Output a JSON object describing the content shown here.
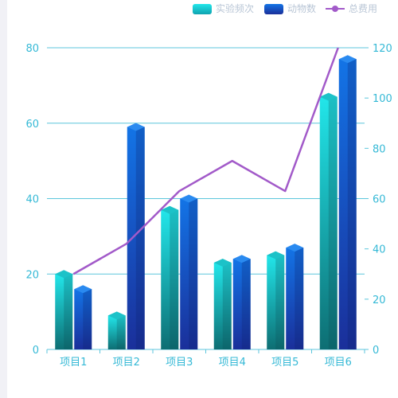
{
  "chart_data": {
    "type": "bar",
    "categories": [
      "项目1",
      "项目2",
      "项目3",
      "项目4",
      "项目5",
      "项目6"
    ],
    "series": [
      {
        "name": "实验频次",
        "type": "bar",
        "axis": "left",
        "values": [
          20,
          9,
          37,
          23,
          25,
          67
        ]
      },
      {
        "name": "动物数",
        "type": "bar",
        "axis": "left",
        "values": [
          16,
          59,
          40,
          24,
          27,
          77
        ]
      },
      {
        "name": "总费用",
        "type": "line",
        "axis": "right",
        "values": [
          30,
          42,
          63,
          75,
          63,
          120
        ]
      }
    ],
    "y_left": {
      "min": 0,
      "max": 80,
      "ticks": [
        0,
        20,
        40,
        60,
        80
      ]
    },
    "y_right": {
      "min": 0,
      "max": 120,
      "ticks": [
        0,
        20,
        40,
        60,
        80,
        100,
        120
      ]
    },
    "grid": true,
    "legend_position": "top-right"
  },
  "colors": {
    "bar1_top": "#22e6ea",
    "bar1_bottom": "#0d6e73",
    "bar2_top": "#1374e6",
    "bar2_bottom": "#1a2f9a",
    "line": "#a25ac9",
    "grid": "#5cc6dc",
    "axis_text": "#35b9d6"
  }
}
